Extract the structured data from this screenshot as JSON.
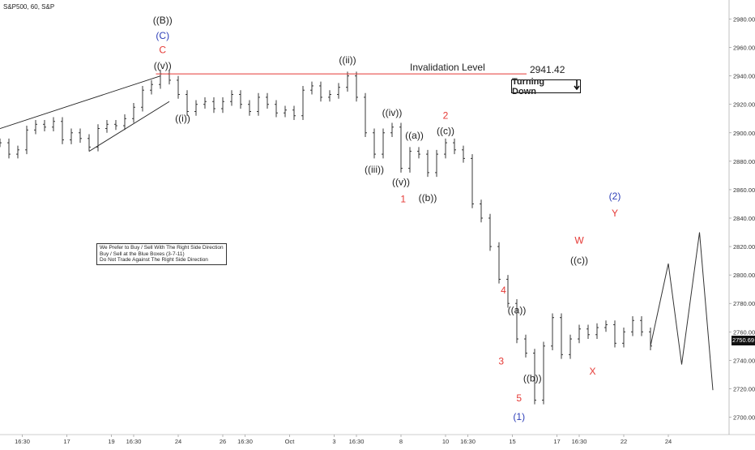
{
  "title": "S&P500, 60, S&P",
  "annotation_box": {
    "lines": [
      "We Prefer to Buy / Sell With The Right Side Direction",
      "Buy / Sell at the Blue Boxes (3-7-11)",
      "Do Not Trade Against The Right Side Direction"
    ]
  },
  "invalidation": {
    "label": "Invalidation Level",
    "value": "2941.42"
  },
  "turning_box": {
    "label": "Turning Down",
    "arrow": "down-arrow-icon"
  },
  "last_price": "2750.69",
  "colors": {
    "invalidation_line": "#e53935",
    "red_label": "#e53935",
    "blue_label": "#2e3fb8",
    "black": "#222222",
    "price_tag_bg": "#111111"
  },
  "chart_data": {
    "type": "line",
    "ylim": [
      2690,
      2990
    ],
    "y_ticks": [
      "2980.00",
      "2960.00",
      "2940.00",
      "2920.00",
      "2900.00",
      "2880.00",
      "2860.00",
      "2840.00",
      "2820.00",
      "2800.00",
      "2780.00",
      "2760.00",
      "2740.00",
      "2720.00",
      "2700.00"
    ],
    "y_tick_values": [
      2980,
      2960,
      2940,
      2920,
      2900,
      2880,
      2860,
      2840,
      2820,
      2800,
      2780,
      2760,
      2740,
      2720,
      2700
    ],
    "x_ticks": [
      "16:30",
      "17",
      "19",
      "16:30",
      "24",
      "26",
      "16:30",
      "Oct",
      "3",
      "16:30",
      "8",
      "10",
      "16:30",
      "15",
      "17",
      "16:30",
      "22",
      "24"
    ],
    "x_tick_values": [
      1,
      3,
      5,
      6,
      8,
      10,
      11,
      13,
      15,
      16,
      18,
      20,
      21,
      23,
      25,
      26,
      28,
      30
    ],
    "xlim": [
      0,
      32
    ],
    "grid": false,
    "price_series": [
      [
        0.0,
        2893
      ],
      [
        0.4,
        2885
      ],
      [
        0.8,
        2888
      ],
      [
        1.2,
        2902
      ],
      [
        1.6,
        2906
      ],
      [
        2.0,
        2904
      ],
      [
        2.4,
        2908
      ],
      [
        2.8,
        2895
      ],
      [
        3.2,
        2900
      ],
      [
        3.6,
        2896
      ],
      [
        4.0,
        2890
      ],
      [
        4.4,
        2903
      ],
      [
        4.8,
        2906
      ],
      [
        5.2,
        2905
      ],
      [
        5.6,
        2910
      ],
      [
        6.0,
        2918
      ],
      [
        6.4,
        2930
      ],
      [
        6.8,
        2934
      ],
      [
        7.2,
        2941.42
      ],
      [
        7.6,
        2937
      ],
      [
        8.0,
        2927
      ],
      [
        8.4,
        2915
      ],
      [
        8.8,
        2920
      ],
      [
        9.2,
        2922
      ],
      [
        9.6,
        2917
      ],
      [
        10.0,
        2922
      ],
      [
        10.4,
        2927
      ],
      [
        10.8,
        2920
      ],
      [
        11.2,
        2915
      ],
      [
        11.6,
        2925
      ],
      [
        12.0,
        2920
      ],
      [
        12.4,
        2914
      ],
      [
        12.8,
        2916
      ],
      [
        13.2,
        2912
      ],
      [
        13.6,
        2930
      ],
      [
        14.0,
        2933
      ],
      [
        14.4,
        2925
      ],
      [
        14.8,
        2927
      ],
      [
        15.2,
        2932
      ],
      [
        15.6,
        2940
      ],
      [
        16.0,
        2925
      ],
      [
        16.4,
        2900
      ],
      [
        16.8,
        2885
      ],
      [
        17.2,
        2900
      ],
      [
        17.6,
        2904
      ],
      [
        18.0,
        2875
      ],
      [
        18.4,
        2887
      ],
      [
        18.8,
        2885
      ],
      [
        19.2,
        2872
      ],
      [
        19.6,
        2885
      ],
      [
        20.0,
        2893
      ],
      [
        20.4,
        2888
      ],
      [
        20.8,
        2882
      ],
      [
        21.2,
        2850
      ],
      [
        21.6,
        2840
      ],
      [
        22.0,
        2820
      ],
      [
        22.4,
        2797
      ],
      [
        22.8,
        2780
      ],
      [
        23.2,
        2755
      ],
      [
        23.6,
        2745
      ],
      [
        24.0,
        2712
      ],
      [
        24.4,
        2750
      ],
      [
        24.8,
        2770
      ],
      [
        25.2,
        2744
      ],
      [
        25.6,
        2755
      ],
      [
        26.0,
        2762
      ],
      [
        26.4,
        2758
      ],
      [
        26.8,
        2763
      ],
      [
        27.2,
        2765
      ],
      [
        27.6,
        2752
      ],
      [
        28.0,
        2760
      ],
      [
        28.4,
        2768
      ],
      [
        28.8,
        2760
      ],
      [
        29.2,
        2750
      ]
    ],
    "projection": [
      [
        29.2,
        2750
      ],
      [
        30.0,
        2808
      ],
      [
        30.6,
        2737
      ],
      [
        31.4,
        2830
      ],
      [
        32.0,
        2719
      ]
    ],
    "wave_labels": [
      {
        "text": "((B))",
        "x": 7.3,
        "y": 2977,
        "color": "black"
      },
      {
        "text": "(C)",
        "x": 7.3,
        "y": 2966,
        "color": "blue"
      },
      {
        "text": "C",
        "x": 7.3,
        "y": 2956,
        "color": "red"
      },
      {
        "text": "((v))",
        "x": 7.3,
        "y": 2945,
        "color": "black"
      },
      {
        "text": "((i))",
        "x": 8.2,
        "y": 2908,
        "color": "black"
      },
      {
        "text": "((ii))",
        "x": 15.6,
        "y": 2949,
        "color": "black"
      },
      {
        "text": "((iii))",
        "x": 16.8,
        "y": 2872,
        "color": "black"
      },
      {
        "text": "((iv))",
        "x": 17.6,
        "y": 2912,
        "color": "black"
      },
      {
        "text": "((v))",
        "x": 18.0,
        "y": 2863,
        "color": "black"
      },
      {
        "text": "1",
        "x": 18.1,
        "y": 2851,
        "color": "red"
      },
      {
        "text": "((a))",
        "x": 18.6,
        "y": 2896,
        "color": "black"
      },
      {
        "text": "((b))",
        "x": 19.2,
        "y": 2852,
        "color": "black"
      },
      {
        "text": "((c))",
        "x": 20.0,
        "y": 2899,
        "color": "black"
      },
      {
        "text": "2",
        "x": 20.0,
        "y": 2910,
        "color": "red"
      },
      {
        "text": "4",
        "x": 22.6,
        "y": 2787,
        "color": "red"
      },
      {
        "text": "((a))",
        "x": 23.2,
        "y": 2773,
        "color": "black"
      },
      {
        "text": "3",
        "x": 22.5,
        "y": 2737,
        "color": "red"
      },
      {
        "text": "((b))",
        "x": 23.9,
        "y": 2725,
        "color": "black"
      },
      {
        "text": "5",
        "x": 23.3,
        "y": 2711,
        "color": "red"
      },
      {
        "text": "(1)",
        "x": 23.3,
        "y": 2698,
        "color": "blue"
      },
      {
        "text": "W",
        "x": 26.0,
        "y": 2822,
        "color": "red"
      },
      {
        "text": "((c))",
        "x": 26.0,
        "y": 2808,
        "color": "black"
      },
      {
        "text": "X",
        "x": 26.6,
        "y": 2730,
        "color": "red"
      },
      {
        "text": "(2)",
        "x": 27.6,
        "y": 2853,
        "color": "blue"
      },
      {
        "text": "Y",
        "x": 27.6,
        "y": 2841,
        "color": "red"
      }
    ],
    "trendlines": [
      {
        "from": [
          0,
          2903
        ],
        "to": [
          7.2,
          2940
        ]
      },
      {
        "from": [
          4.0,
          2887
        ],
        "to": [
          7.6,
          2922
        ]
      }
    ],
    "invalidation_level": 2941.42
  }
}
